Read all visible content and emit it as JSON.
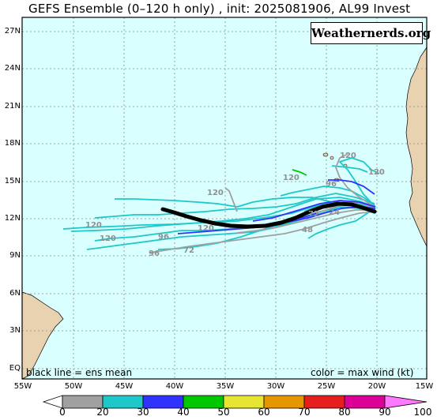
{
  "title": "GEFS Ensemble (0–120 h only) , init: 2025081906, AL99 Invest",
  "watermark": "Weathernerds.org",
  "map": {
    "lat_labels": [
      "27N",
      "24N",
      "21N",
      "18N",
      "15N",
      "12N",
      "9N",
      "6N",
      "3N",
      "EQ"
    ],
    "lon_labels": [
      "55W",
      "50W",
      "45W",
      "40W",
      "35W",
      "30W",
      "25W",
      "20W",
      "15W"
    ],
    "ocean_color": "#d9ffff",
    "land_color": "#e8d2b0",
    "note_left": "black line = ens mean",
    "note_right": "color = max wind (kt)",
    "track_hour_labels": [
      "120",
      "120",
      "120",
      "96",
      "120",
      "72",
      "120",
      "96",
      "48",
      "120",
      "72",
      "96",
      "24",
      "120"
    ]
  },
  "colorbar": {
    "ticks": [
      "0",
      "20",
      "30",
      "40",
      "50",
      "60",
      "70",
      "80",
      "90",
      "100"
    ],
    "colors": [
      "#a0a0a0",
      "#1ec8c8",
      "#3232ff",
      "#00c800",
      "#e6e632",
      "#e69600",
      "#e61e1e",
      "#dc0096",
      "#ff78ff"
    ]
  },
  "tracks": {
    "mean_color": "#000000",
    "member_colors_used": [
      "#a0a0a0",
      "#1ec8c8",
      "#3232ff",
      "#00c800"
    ]
  }
}
